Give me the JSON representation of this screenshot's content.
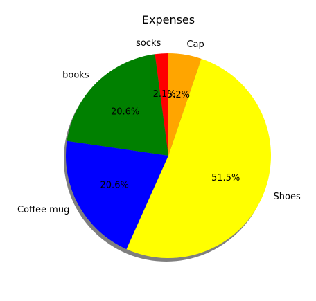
{
  "chart_data": {
    "type": "pie",
    "title": "Expenses",
    "slices": [
      {
        "label": "socks",
        "value": 2.1,
        "pct_label": "2.1%",
        "color": "#ff0000"
      },
      {
        "label": "books",
        "value": 20.6,
        "pct_label": "20.6%",
        "color": "#008000"
      },
      {
        "label": "Coffee mug",
        "value": 20.6,
        "pct_label": "20.6%",
        "color": "#0000ff"
      },
      {
        "label": "Shoes",
        "value": 51.5,
        "pct_label": "51.5%",
        "color": "#ffff00"
      },
      {
        "label": "Cap",
        "value": 5.2,
        "pct_label": "5.2%",
        "color": "#ffa500"
      }
    ],
    "start_angle_deg": 90,
    "direction": "counterclockwise",
    "shadow": true,
    "legend": "none"
  }
}
